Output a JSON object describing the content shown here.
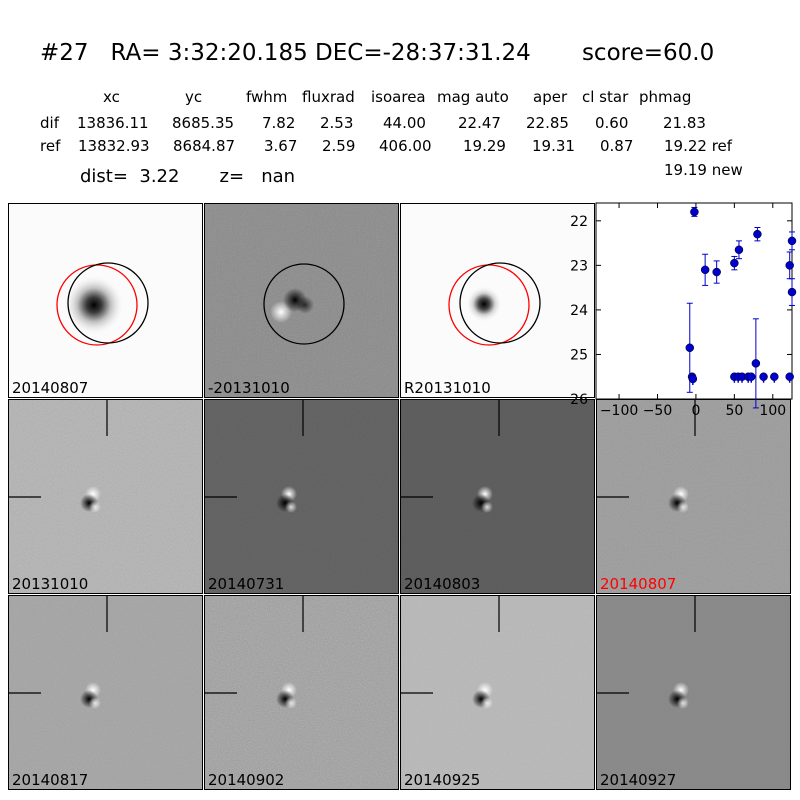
{
  "header": {
    "title": "#27   RA= 3:32:20.185 DEC=-28:37:31.24       score=60.0"
  },
  "stats": {
    "columns": [
      "xc",
      "yc",
      "fwhm",
      "fluxrad",
      "isoarea",
      "mag auto",
      "aper",
      "cl star",
      "phmag"
    ],
    "rows": [
      {
        "label": "dif",
        "values": [
          "13836.11",
          "8685.35",
          "7.82",
          "2.53",
          "44.00",
          "22.47",
          "22.85",
          "0.60",
          "21.83"
        ]
      },
      {
        "label": "ref",
        "values": [
          "13832.93",
          "8684.87",
          "3.67",
          "2.59",
          "406.00",
          "19.29",
          "19.31",
          "0.87",
          "19.22 ref"
        ]
      }
    ],
    "extra_phmag": "19.19 new",
    "dist_line": "dist=  3.22       z=   nan"
  },
  "panels": {
    "science": {
      "label": "20140807"
    },
    "diff": {
      "label": "-20131010"
    },
    "reference": {
      "label": "R20131010"
    },
    "stamps": [
      {
        "label": "20131010",
        "color": "#000000"
      },
      {
        "label": "20140731",
        "color": "#000000"
      },
      {
        "label": "20140803",
        "color": "#000000"
      },
      {
        "label": "20140807",
        "color": "#ff0000"
      },
      {
        "label": "20140817",
        "color": "#000000"
      },
      {
        "label": "20140902",
        "color": "#000000"
      },
      {
        "label": "20140925",
        "color": "#000000"
      },
      {
        "label": "20140927",
        "color": "#000000"
      }
    ]
  },
  "chart_data": {
    "type": "scatter",
    "title": "",
    "xlabel": "",
    "ylabel": "",
    "xlim": [
      -130,
      125
    ],
    "ylim": [
      26,
      21.6
    ],
    "y_inverted": true,
    "x_ticks": [
      -100,
      -50,
      0,
      50,
      100
    ],
    "x_tick_labels": [
      "−100",
      "−50",
      "0",
      "50",
      "100"
    ],
    "y_ticks": [
      22,
      23,
      24,
      25,
      26
    ],
    "y_tick_labels": [
      "22",
      "23",
      "24",
      "25",
      "26"
    ],
    "y_axis_side": "left",
    "marker_color": "#0000cc",
    "points": [
      {
        "x": -2,
        "y": 21.8,
        "err": 0.1
      },
      {
        "x": 12,
        "y": 23.1,
        "err": 0.35
      },
      {
        "x": 27,
        "y": 23.15,
        "err": 0.25
      },
      {
        "x": 50,
        "y": 22.95,
        "err": 0.15
      },
      {
        "x": 56,
        "y": 22.65,
        "err": 0.2
      },
      {
        "x": 80,
        "y": 22.3,
        "err": 0.15
      },
      {
        "x": 122,
        "y": 23.0,
        "err": 0.3
      },
      {
        "x": 125,
        "y": 22.45,
        "err": 0.2
      },
      {
        "x": 125,
        "y": 23.6,
        "err": 0.3
      },
      {
        "x": -8,
        "y": 24.85,
        "err": 1.0
      },
      {
        "x": -5,
        "y": 25.5,
        "err": 0.0,
        "limit": true
      },
      {
        "x": -4,
        "y": 25.55,
        "err": 0.0,
        "limit": true
      },
      {
        "x": 50,
        "y": 25.5,
        "err": 0.0,
        "limit": true
      },
      {
        "x": 55,
        "y": 25.5,
        "err": 0.0,
        "limit": true
      },
      {
        "x": 60,
        "y": 25.5,
        "err": 0.0,
        "limit": true
      },
      {
        "x": 68,
        "y": 25.5,
        "err": 0.0,
        "limit": true
      },
      {
        "x": 72,
        "y": 25.5,
        "err": 0.0,
        "limit": true
      },
      {
        "x": 78,
        "y": 25.2,
        "err": 1.0
      },
      {
        "x": 88,
        "y": 25.5,
        "err": 0.0,
        "limit": true
      },
      {
        "x": 102,
        "y": 25.5,
        "err": 0.0,
        "limit": true
      },
      {
        "x": 122,
        "y": 25.5,
        "err": 0.0,
        "limit": true
      }
    ]
  }
}
